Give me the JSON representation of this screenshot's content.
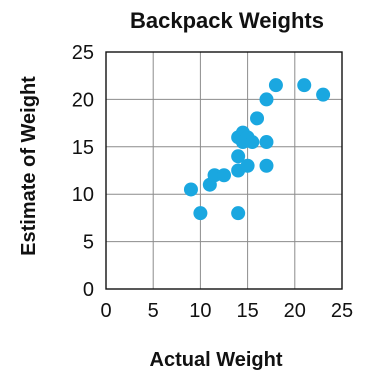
{
  "chart_data": {
    "type": "scatter",
    "title": "Backpack Weights",
    "xlabel": "Actual Weight",
    "ylabel": "Estimate of Weight",
    "xlim": [
      0,
      25
    ],
    "ylim": [
      0,
      25
    ],
    "x_ticks": [
      0,
      5,
      10,
      15,
      20,
      25
    ],
    "y_ticks": [
      0,
      5,
      10,
      15,
      20,
      25
    ],
    "grid": true,
    "point_color": "#1aa7e0",
    "points": [
      {
        "x": 9,
        "y": 10.5
      },
      {
        "x": 10,
        "y": 8
      },
      {
        "x": 11,
        "y": 11
      },
      {
        "x": 11.5,
        "y": 12
      },
      {
        "x": 12.5,
        "y": 12
      },
      {
        "x": 14,
        "y": 8
      },
      {
        "x": 14,
        "y": 12.5
      },
      {
        "x": 14,
        "y": 14
      },
      {
        "x": 14,
        "y": 16
      },
      {
        "x": 14.5,
        "y": 16.5
      },
      {
        "x": 14.5,
        "y": 15.5
      },
      {
        "x": 15,
        "y": 16
      },
      {
        "x": 15,
        "y": 13
      },
      {
        "x": 15.5,
        "y": 15.5
      },
      {
        "x": 16,
        "y": 18
      },
      {
        "x": 17,
        "y": 20
      },
      {
        "x": 17,
        "y": 15.5
      },
      {
        "x": 17,
        "y": 13
      },
      {
        "x": 18,
        "y": 21.5
      },
      {
        "x": 21,
        "y": 21.5
      },
      {
        "x": 23,
        "y": 20.5
      }
    ]
  }
}
